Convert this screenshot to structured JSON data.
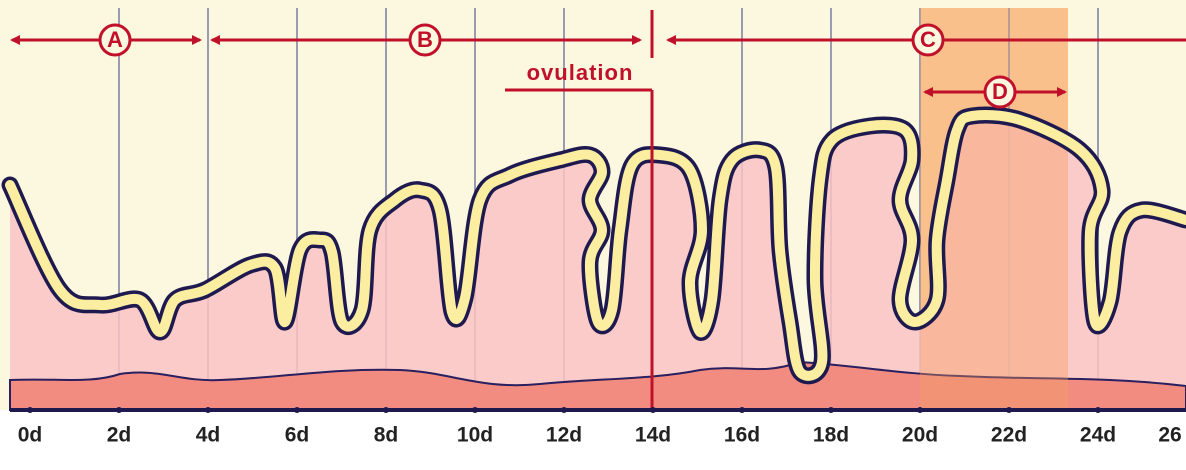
{
  "phases": [
    {
      "label": "A"
    },
    {
      "label": "B"
    },
    {
      "label": "C"
    },
    {
      "label": "D"
    }
  ],
  "ovulation": {
    "label": "ovulation"
  },
  "axis": {
    "ticks": [
      "0d",
      "2d",
      "4d",
      "6d",
      "8d",
      "10d",
      "12d",
      "14d",
      "16d",
      "18d",
      "20d",
      "22d",
      "24d",
      "26"
    ]
  }
}
